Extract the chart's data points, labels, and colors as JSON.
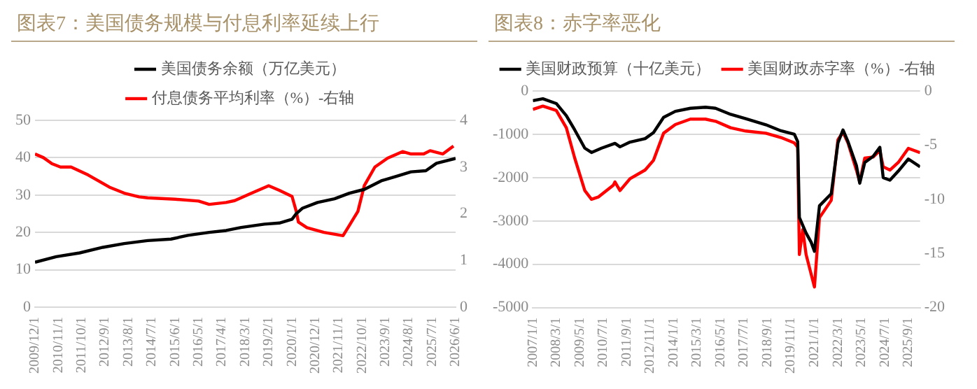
{
  "chart_data": [
    {
      "type": "line",
      "title": "图表7：美国债务规模与付息利率延续上行",
      "legend": "top",
      "grid": "y",
      "marker": "none",
      "xlim": [
        "2009-12",
        "2026-06"
      ],
      "xticks": [
        {
          "value": "2009-12",
          "label": "2009/12/1"
        },
        {
          "value": "2010-11",
          "label": "2010/11/1"
        },
        {
          "value": "2011-10",
          "label": "2011/10/1"
        },
        {
          "value": "2012-09",
          "label": "2012/9/1"
        },
        {
          "value": "2013-08",
          "label": "2013/8/1"
        },
        {
          "value": "2014-07",
          "label": "2014/7/1"
        },
        {
          "value": "2015-06",
          "label": "2015/6/1"
        },
        {
          "value": "2016-05",
          "label": "2016/5/1"
        },
        {
          "value": "2017-04",
          "label": "2017/4/1"
        },
        {
          "value": "2018-03",
          "label": "2018/3/1"
        },
        {
          "value": "2019-02",
          "label": "2019/2/1"
        },
        {
          "value": "2020-01",
          "label": "2020/1/1"
        },
        {
          "value": "2020-12",
          "label": "2020/12/1"
        },
        {
          "value": "2021-11",
          "label": "2021/11/1"
        },
        {
          "value": "2022-10",
          "label": "2022/10/1"
        },
        {
          "value": "2023-09",
          "label": "2023/9/1"
        },
        {
          "value": "2024-08",
          "label": "2024/8/1"
        },
        {
          "value": "2025-07",
          "label": "2025/7/1"
        },
        {
          "value": "2026-06",
          "label": "2026/6/1"
        }
      ],
      "ylim": [
        0,
        50
      ],
      "yticks": [
        0,
        10,
        20,
        30,
        40,
        50
      ],
      "y2lim": [
        0,
        4
      ],
      "y2ticks": [
        0,
        1,
        2,
        3,
        4
      ],
      "series": [
        {
          "name": "美国债务余额（万亿美元）",
          "color": "#000000",
          "x": [
            "2009-12",
            "2010-10",
            "2011-09",
            "2012-08",
            "2013-06",
            "2014-05",
            "2015-04",
            "2015-12",
            "2016-10",
            "2017-06",
            "2018-01",
            "2018-12",
            "2019-07",
            "2020-01",
            "2020-03",
            "2020-06",
            "2021-01",
            "2021-09",
            "2022-04",
            "2022-11",
            "2023-07",
            "2024-02",
            "2024-09",
            "2025-04",
            "2025-09",
            "2026-06"
          ],
          "values": [
            12,
            13.5,
            14.5,
            16,
            17,
            17.8,
            18.2,
            19.2,
            20,
            20.5,
            21.3,
            22.2,
            22.5,
            23.5,
            25,
            26.5,
            28,
            29,
            30.5,
            31.5,
            33.8,
            35,
            36.2,
            36.5,
            38.5,
            39.8
          ]
        },
        {
          "name": "付息债务平均利率（%）-右轴",
          "color": "#ff0000",
          "axis": "y2",
          "x": [
            "2009-12",
            "2010-04",
            "2010-08",
            "2010-12",
            "2011-05",
            "2012-01",
            "2012-11",
            "2013-06",
            "2014-01",
            "2014-05",
            "2015-06",
            "2016-05",
            "2016-10",
            "2017-06",
            "2017-10",
            "2018-06",
            "2019-02",
            "2019-07",
            "2020-01",
            "2020-03",
            "2020-04",
            "2020-08",
            "2021-04",
            "2022-01",
            "2022-04",
            "2022-08",
            "2022-11",
            "2023-04",
            "2023-10",
            "2024-05",
            "2024-09",
            "2025-03",
            "2025-06",
            "2025-12",
            "2026-05"
          ],
          "values": [
            3.28,
            3.2,
            3.07,
            3.0,
            3.0,
            2.83,
            2.57,
            2.44,
            2.36,
            2.34,
            2.31,
            2.27,
            2.2,
            2.24,
            2.28,
            2.44,
            2.6,
            2.5,
            2.37,
            2.05,
            1.82,
            1.7,
            1.6,
            1.53,
            1.75,
            2.05,
            2.6,
            3.0,
            3.19,
            3.33,
            3.28,
            3.28,
            3.35,
            3.28,
            3.45
          ]
        }
      ]
    },
    {
      "type": "line",
      "title": "图表8：赤字率恶化",
      "legend": "top",
      "grid": "y",
      "marker": "none",
      "xlim": [
        "2007-01",
        "2026-04"
      ],
      "xticks": [
        {
          "value": "2007-01",
          "label": "2007/1/1"
        },
        {
          "value": "2008-03",
          "label": "2008/3/1"
        },
        {
          "value": "2009-05",
          "label": "2009/5/1"
        },
        {
          "value": "2010-07",
          "label": "2010/7/1"
        },
        {
          "value": "2011-09",
          "label": "2011/9/1"
        },
        {
          "value": "2012-11",
          "label": "2012/11/1"
        },
        {
          "value": "2014-01",
          "label": "2014/1/1"
        },
        {
          "value": "2015-03",
          "label": "2015/3/1"
        },
        {
          "value": "2016-05",
          "label": "2016/5/1"
        },
        {
          "value": "2017-07",
          "label": "2017/7/1"
        },
        {
          "value": "2018-09",
          "label": "2018/9/1"
        },
        {
          "value": "2019-11",
          "label": "2019/11/1"
        },
        {
          "value": "2021-01",
          "label": "2021/1/1"
        },
        {
          "value": "2022-03",
          "label": "2022/3/1"
        },
        {
          "value": "2023-05",
          "label": "2023/5/1"
        },
        {
          "value": "2024-07",
          "label": "2024/7/1"
        },
        {
          "value": "2025-09",
          "label": "2025/9/1"
        }
      ],
      "ylim": [
        -5000,
        0
      ],
      "yticks": [
        -5000,
        -4000,
        -3000,
        -2000,
        -1000,
        0
      ],
      "y2lim": [
        -20,
        0
      ],
      "y2ticks": [
        -20,
        -15,
        -10,
        -5,
        0
      ],
      "series": [
        {
          "name": "美国财政预算（十亿美元）",
          "color": "#000000",
          "x": [
            "2007-01",
            "2007-07",
            "2008-03",
            "2008-09",
            "2009-02",
            "2009-08",
            "2009-12",
            "2010-06",
            "2011-02",
            "2011-05",
            "2011-11",
            "2012-08",
            "2013-01",
            "2013-07",
            "2014-02",
            "2014-11",
            "2015-08",
            "2016-02",
            "2016-11",
            "2017-08",
            "2018-08",
            "2019-05",
            "2020-01",
            "2020-03",
            "2020-04",
            "2020-08",
            "2020-11",
            "2021-01",
            "2021-04",
            "2021-11",
            "2022-03",
            "2022-06",
            "2022-09",
            "2023-02",
            "2023-04",
            "2023-07",
            "2023-12",
            "2024-04",
            "2024-06",
            "2024-10",
            "2025-03",
            "2025-09",
            "2026-04"
          ],
          "values": [
            -225,
            -180,
            -290,
            -570,
            -900,
            -1320,
            -1420,
            -1320,
            -1210,
            -1290,
            -1180,
            -1100,
            -960,
            -610,
            -470,
            -400,
            -375,
            -400,
            -540,
            -640,
            -780,
            -920,
            -1000,
            -1170,
            -2920,
            -3280,
            -3490,
            -3700,
            -2650,
            -2375,
            -1200,
            -900,
            -1170,
            -1720,
            -2130,
            -1650,
            -1510,
            -1300,
            -2000,
            -2060,
            -1850,
            -1570,
            -1750
          ]
        },
        {
          "name": "美国财政赤字率（%）-右轴",
          "color": "#ff0000",
          "axis": "y2",
          "x": [
            "2007-01",
            "2007-07",
            "2008-03",
            "2008-09",
            "2009-02",
            "2009-08",
            "2009-12",
            "2010-04",
            "2011-01",
            "2011-02",
            "2011-05",
            "2011-11",
            "2012-08",
            "2013-01",
            "2013-07",
            "2014-02",
            "2014-11",
            "2015-08",
            "2016-02",
            "2016-11",
            "2017-08",
            "2018-08",
            "2019-05",
            "2020-01",
            "2020-03",
            "2020-04",
            "2020-06",
            "2020-08",
            "2021-01",
            "2021-04",
            "2021-11",
            "2022-03",
            "2022-06",
            "2022-09",
            "2023-02",
            "2023-04",
            "2023-07",
            "2023-12",
            "2024-04",
            "2024-06",
            "2024-10",
            "2025-03",
            "2025-09",
            "2026-04"
          ],
          "values": [
            -1.7,
            -1.4,
            -1.8,
            -3.4,
            -6.2,
            -9.2,
            -10.0,
            -9.8,
            -8.7,
            -8.4,
            -9.2,
            -8.1,
            -7.3,
            -6.4,
            -3.9,
            -3.1,
            -2.6,
            -2.6,
            -2.8,
            -3.4,
            -3.7,
            -3.9,
            -4.3,
            -4.8,
            -5.2,
            -15.1,
            -12.8,
            -15.1,
            -18.1,
            -11.7,
            -10.1,
            -4.5,
            -3.8,
            -4.8,
            -7.3,
            -8.4,
            -6.2,
            -6.1,
            -5.5,
            -7.0,
            -7.3,
            -6.6,
            -5.3,
            -5.7
          ]
        }
      ]
    }
  ]
}
